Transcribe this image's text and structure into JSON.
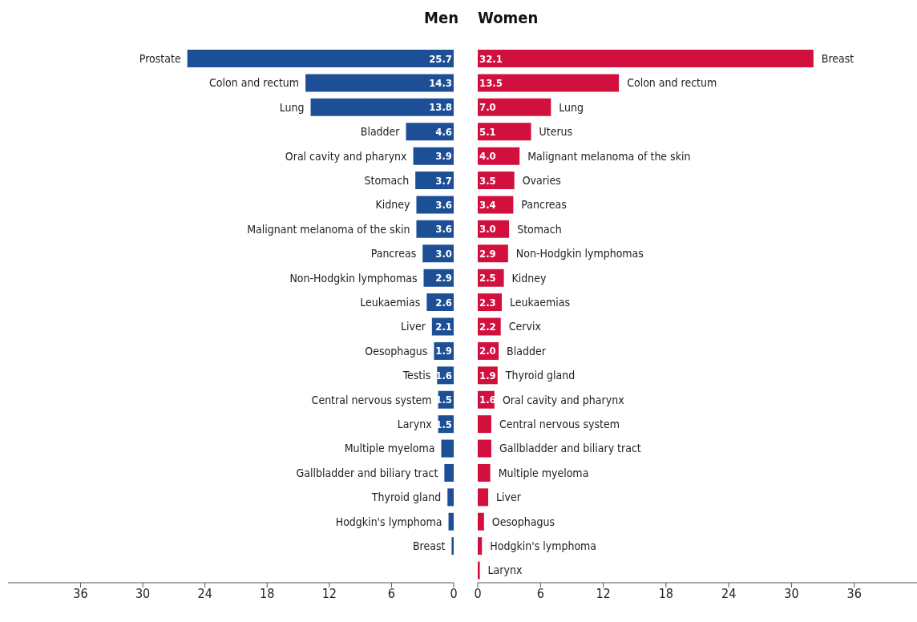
{
  "chart_data": [
    {
      "type": "bar",
      "orientation": "horizontal",
      "title": "Men",
      "categories": [
        "Prostate",
        "Colon and rectum",
        "Lung",
        "Bladder",
        "Oral cavity and pharynx",
        "Stomach",
        "Kidney",
        "Malignant melanoma of the skin",
        "Pancreas",
        "Non-Hodgkin lymphomas",
        "Leukaemias",
        "Liver",
        "Oesophagus",
        "Testis",
        "Central nervous system",
        "Larynx",
        "Multiple myeloma",
        "Gallbladder and biliary tract",
        "Thyroid gland",
        "Hodgkin's lymphoma",
        "Breast"
      ],
      "series": [
        {
          "color": "#1c4f96",
          "values": [
            25.7,
            14.3,
            13.8,
            4.6,
            3.9,
            3.7,
            3.6,
            3.6,
            3.0,
            2.9,
            2.6,
            2.1,
            1.9,
            1.6,
            1.5,
            1.5,
            1.2,
            0.9,
            0.6,
            0.5,
            0.2
          ],
          "value_labels": [
            "25.7",
            "14.3",
            "13.8",
            "4.6",
            "3.9",
            "3.7",
            "3.6",
            "3.6",
            "3.0",
            "2.9",
            "2.6",
            "2.1",
            "1.9",
            "1.6",
            "1.5",
            "1.5",
            null,
            null,
            null,
            null,
            null
          ]
        }
      ],
      "xlim": [
        43,
        0
      ],
      "xticks": [
        36,
        30,
        24,
        18,
        12,
        6,
        0
      ]
    },
    {
      "type": "bar",
      "orientation": "horizontal",
      "title": "Women",
      "categories": [
        "Breast",
        "Colon and rectum",
        "Lung",
        "Uterus",
        "Malignant melanoma of the skin",
        "Ovaries",
        "Pancreas",
        "Stomach",
        "Non-Hodgkin lymphomas",
        "Kidney",
        "Leukaemias",
        "Cervix",
        "Bladder",
        "Thyroid gland",
        "Oral cavity and pharynx",
        "Central nervous system",
        "Gallbladder and biliary tract",
        "Multiple myeloma",
        "Liver",
        "Oesophagus",
        "Hodgkin's lymphoma",
        "Larynx"
      ],
      "series": [
        {
          "color": "#d2103e",
          "values": [
            32.1,
            13.5,
            7.0,
            5.1,
            4.0,
            3.5,
            3.4,
            3.0,
            2.9,
            2.5,
            2.3,
            2.2,
            2.0,
            1.9,
            1.6,
            1.3,
            1.3,
            1.2,
            1.0,
            0.6,
            0.4,
            0.2
          ],
          "value_labels": [
            "32.1",
            "13.5",
            "7.0",
            "5.1",
            "4.0",
            "3.5",
            "3.4",
            "3.0",
            "2.9",
            "2.5",
            "2.3",
            "2.2",
            "2.0",
            "1.9",
            "1.6",
            null,
            null,
            null,
            null,
            null,
            null,
            null
          ]
        }
      ],
      "xlim": [
        0,
        42
      ],
      "xticks": [
        0,
        6,
        12,
        18,
        24,
        30,
        36
      ]
    }
  ]
}
